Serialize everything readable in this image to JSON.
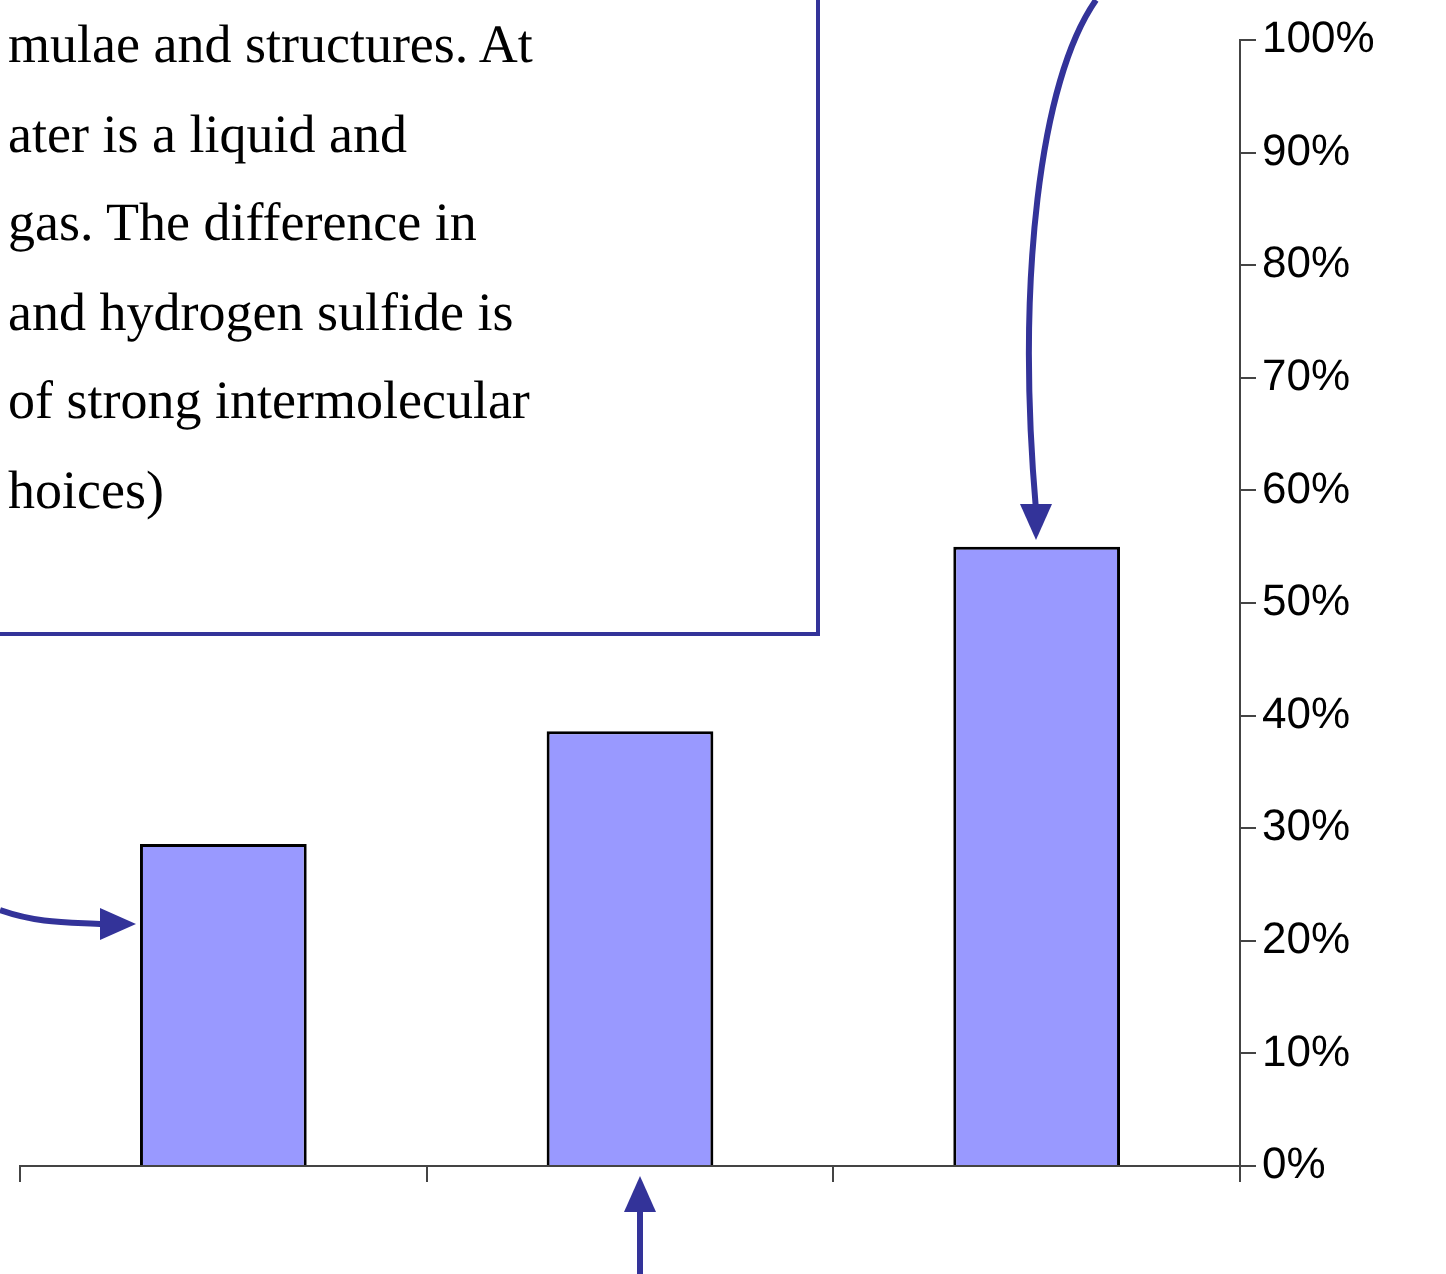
{
  "chart_data": {
    "type": "bar",
    "categories": [
      null,
      null,
      null
    ],
    "values": [
      0.286,
      0.386,
      0.55
    ],
    "color": "#9999ff",
    "ylim": [
      0,
      1
    ],
    "yticks": [
      {
        "value": 0,
        "label": "0%"
      },
      {
        "value": 0.1,
        "label": "10%"
      },
      {
        "value": 0.2,
        "label": "20%"
      },
      {
        "value": 0.3,
        "label": "30%"
      },
      {
        "value": 0.4,
        "label": "40%"
      },
      {
        "value": 0.5,
        "label": "50%"
      },
      {
        "value": 0.6,
        "label": "60%"
      },
      {
        "value": 0.7,
        "label": "70%"
      },
      {
        "value": 0.8,
        "label": "80%"
      },
      {
        "value": 0.9,
        "label": "90%"
      },
      {
        "value": 1,
        "label": "100%"
      }
    ],
    "grid": false,
    "legend": false,
    "annotations": [
      "mulae and structures.  At",
      "ater is a liquid and",
      "gas. The difference in",
      "and hydrogen sulfide is",
      "of strong intermolecular",
      "hoices)"
    ]
  }
}
